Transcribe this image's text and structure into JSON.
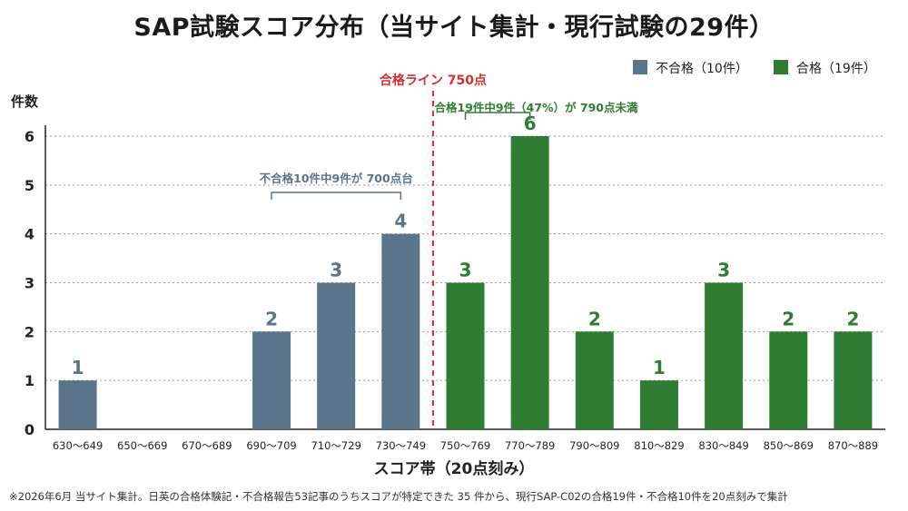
{
  "chart_data": {
    "type": "bar",
    "title": "SAP試験スコア分布（当サイト集計・現行試験の29件）",
    "ylabel": "件数",
    "xlabel": "スコア帯（20点刻み）",
    "ylim": [
      0,
      6
    ],
    "yticks": [
      "0",
      "1",
      "2",
      "3",
      "4",
      "5",
      "6"
    ],
    "grid": true,
    "legend_position": "top-right",
    "categories": [
      "630～649",
      "650～669",
      "670～689",
      "690～709",
      "710～729",
      "730～749",
      "750～769",
      "770～789",
      "790～809",
      "810～829",
      "830～849",
      "850～869",
      "870～889"
    ],
    "series": [
      {
        "name": "不合格（10件）",
        "color": "#5a7489",
        "values": [
          1,
          0,
          0,
          2,
          3,
          4,
          null,
          null,
          null,
          null,
          null,
          null,
          null
        ]
      },
      {
        "name": "合格（19件）",
        "color": "#2e7d32",
        "values": [
          null,
          null,
          null,
          null,
          null,
          null,
          3,
          6,
          2,
          1,
          3,
          2,
          2
        ]
      }
    ],
    "data_labels": [
      "1",
      "",
      "",
      "2",
      "3",
      "4",
      "3",
      "6",
      "2",
      "1",
      "3",
      "2",
      "2"
    ],
    "reference_line": {
      "label": "合格ライン 750点",
      "value": 750,
      "color": "#d32f2f"
    },
    "annotations": [
      {
        "text": "不合格10件中9件が 700点台",
        "color": "#5a7489",
        "from": "690～709",
        "to": "730～749"
      },
      {
        "text": "合格19件中9件（47%）が 790点未満",
        "color": "#2e7d32",
        "from": "750～769",
        "to": "770～789"
      }
    ]
  },
  "footnote": "※2026年6月 当サイト集計。日英の合格体験記・不合格報告53記事のうちスコアが特定できた 35 件から、現行SAP-C02の合格19件・不合格10件を20点刻みで集計"
}
